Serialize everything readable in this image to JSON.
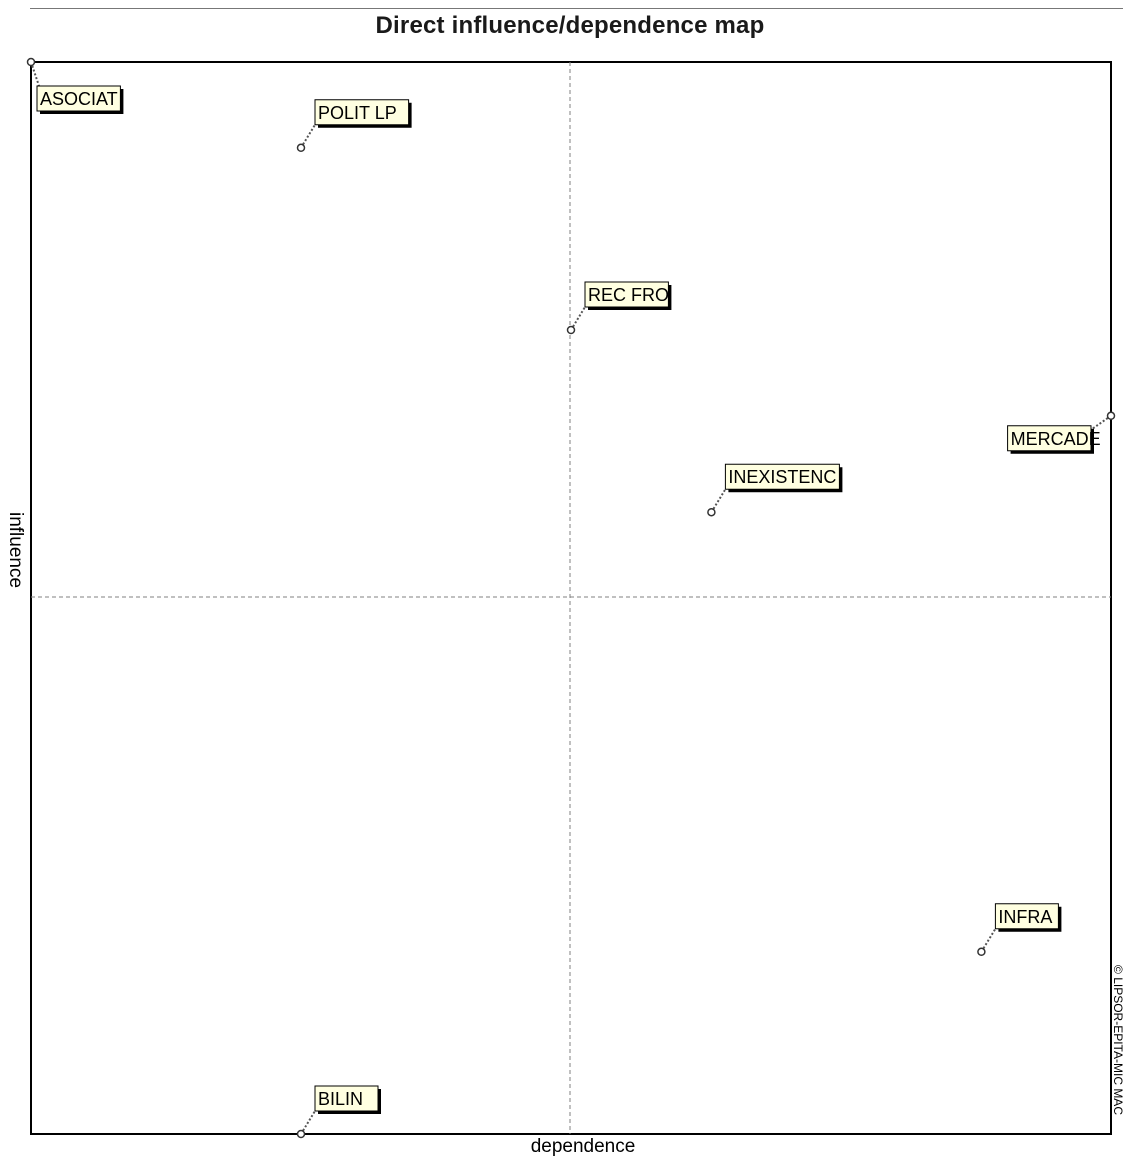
{
  "chart_data": {
    "type": "scatter",
    "title": "Direct influence/dependence map",
    "xlabel": "dependence",
    "ylabel": "influence",
    "copyright": "© LIPSOR-EPITA-MIC MAC",
    "xlim": [
      0,
      1
    ],
    "ylim": [
      0,
      1
    ],
    "grid": "quadrant dividers at midpoint",
    "points": [
      {
        "name": "ASOCIAT",
        "x": 0.0,
        "y": 1.0
      },
      {
        "name": "POLIT LP",
        "x": 0.25,
        "y": 0.92
      },
      {
        "name": "REC FRO",
        "x": 0.5,
        "y": 0.75
      },
      {
        "name": "MERCADE",
        "x": 1.0,
        "y": 0.67
      },
      {
        "name": "INEXISTENC",
        "x": 0.63,
        "y": 0.58
      },
      {
        "name": "INFRA",
        "x": 0.88,
        "y": 0.17
      },
      {
        "name": "BILIN",
        "x": 0.25,
        "y": 0.0
      }
    ],
    "colors": {
      "label_fill": "#ffffe1",
      "frame": "#000000",
      "divider": "#808080"
    }
  }
}
